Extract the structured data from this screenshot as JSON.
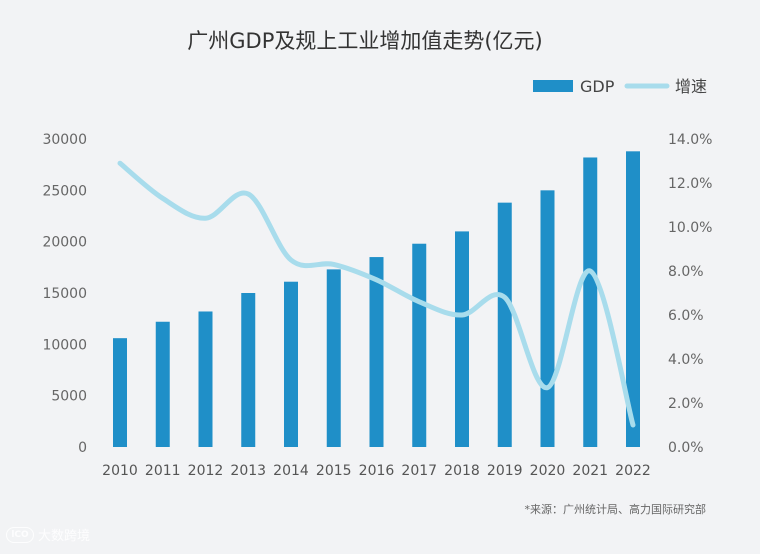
{
  "chart_data": {
    "type": "bar",
    "title": "广州GDP及规上工业增加值走势(亿元)",
    "categories": [
      "2010",
      "2011",
      "2012",
      "2013",
      "2014",
      "2015",
      "2016",
      "2017",
      "2018",
      "2019",
      "2020",
      "2021",
      "2022"
    ],
    "series": [
      {
        "name": "GDP",
        "type": "bar",
        "axis": "left",
        "color": "#1f8fc8",
        "values": [
          10600,
          12200,
          13200,
          15000,
          16100,
          17300,
          18500,
          19800,
          21000,
          23800,
          25000,
          28200,
          28800
        ]
      },
      {
        "name": "增速",
        "type": "line",
        "axis": "right",
        "color": "#a8dcec",
        "values": [
          12.9,
          11.3,
          10.4,
          11.5,
          8.5,
          8.3,
          7.6,
          6.6,
          6.0,
          6.8,
          2.7,
          8.0,
          1.0
        ]
      }
    ],
    "y_left": {
      "min": 0,
      "max": 30000,
      "ticks": [
        "0",
        "5000",
        "10000",
        "15000",
        "20000",
        "25000",
        "30000"
      ]
    },
    "y_right": {
      "min": 0,
      "max": 14,
      "ticks": [
        "0.0%",
        "2.0%",
        "4.0%",
        "6.0%",
        "8.0%",
        "10.0%",
        "12.0%",
        "14.0%"
      ]
    },
    "legend_position": "top-right",
    "grid": false
  },
  "source_note": "*来源：广州统计局、高力国际研究部",
  "watermark": {
    "logo_text": "lCO",
    "text": "大数跨境"
  }
}
